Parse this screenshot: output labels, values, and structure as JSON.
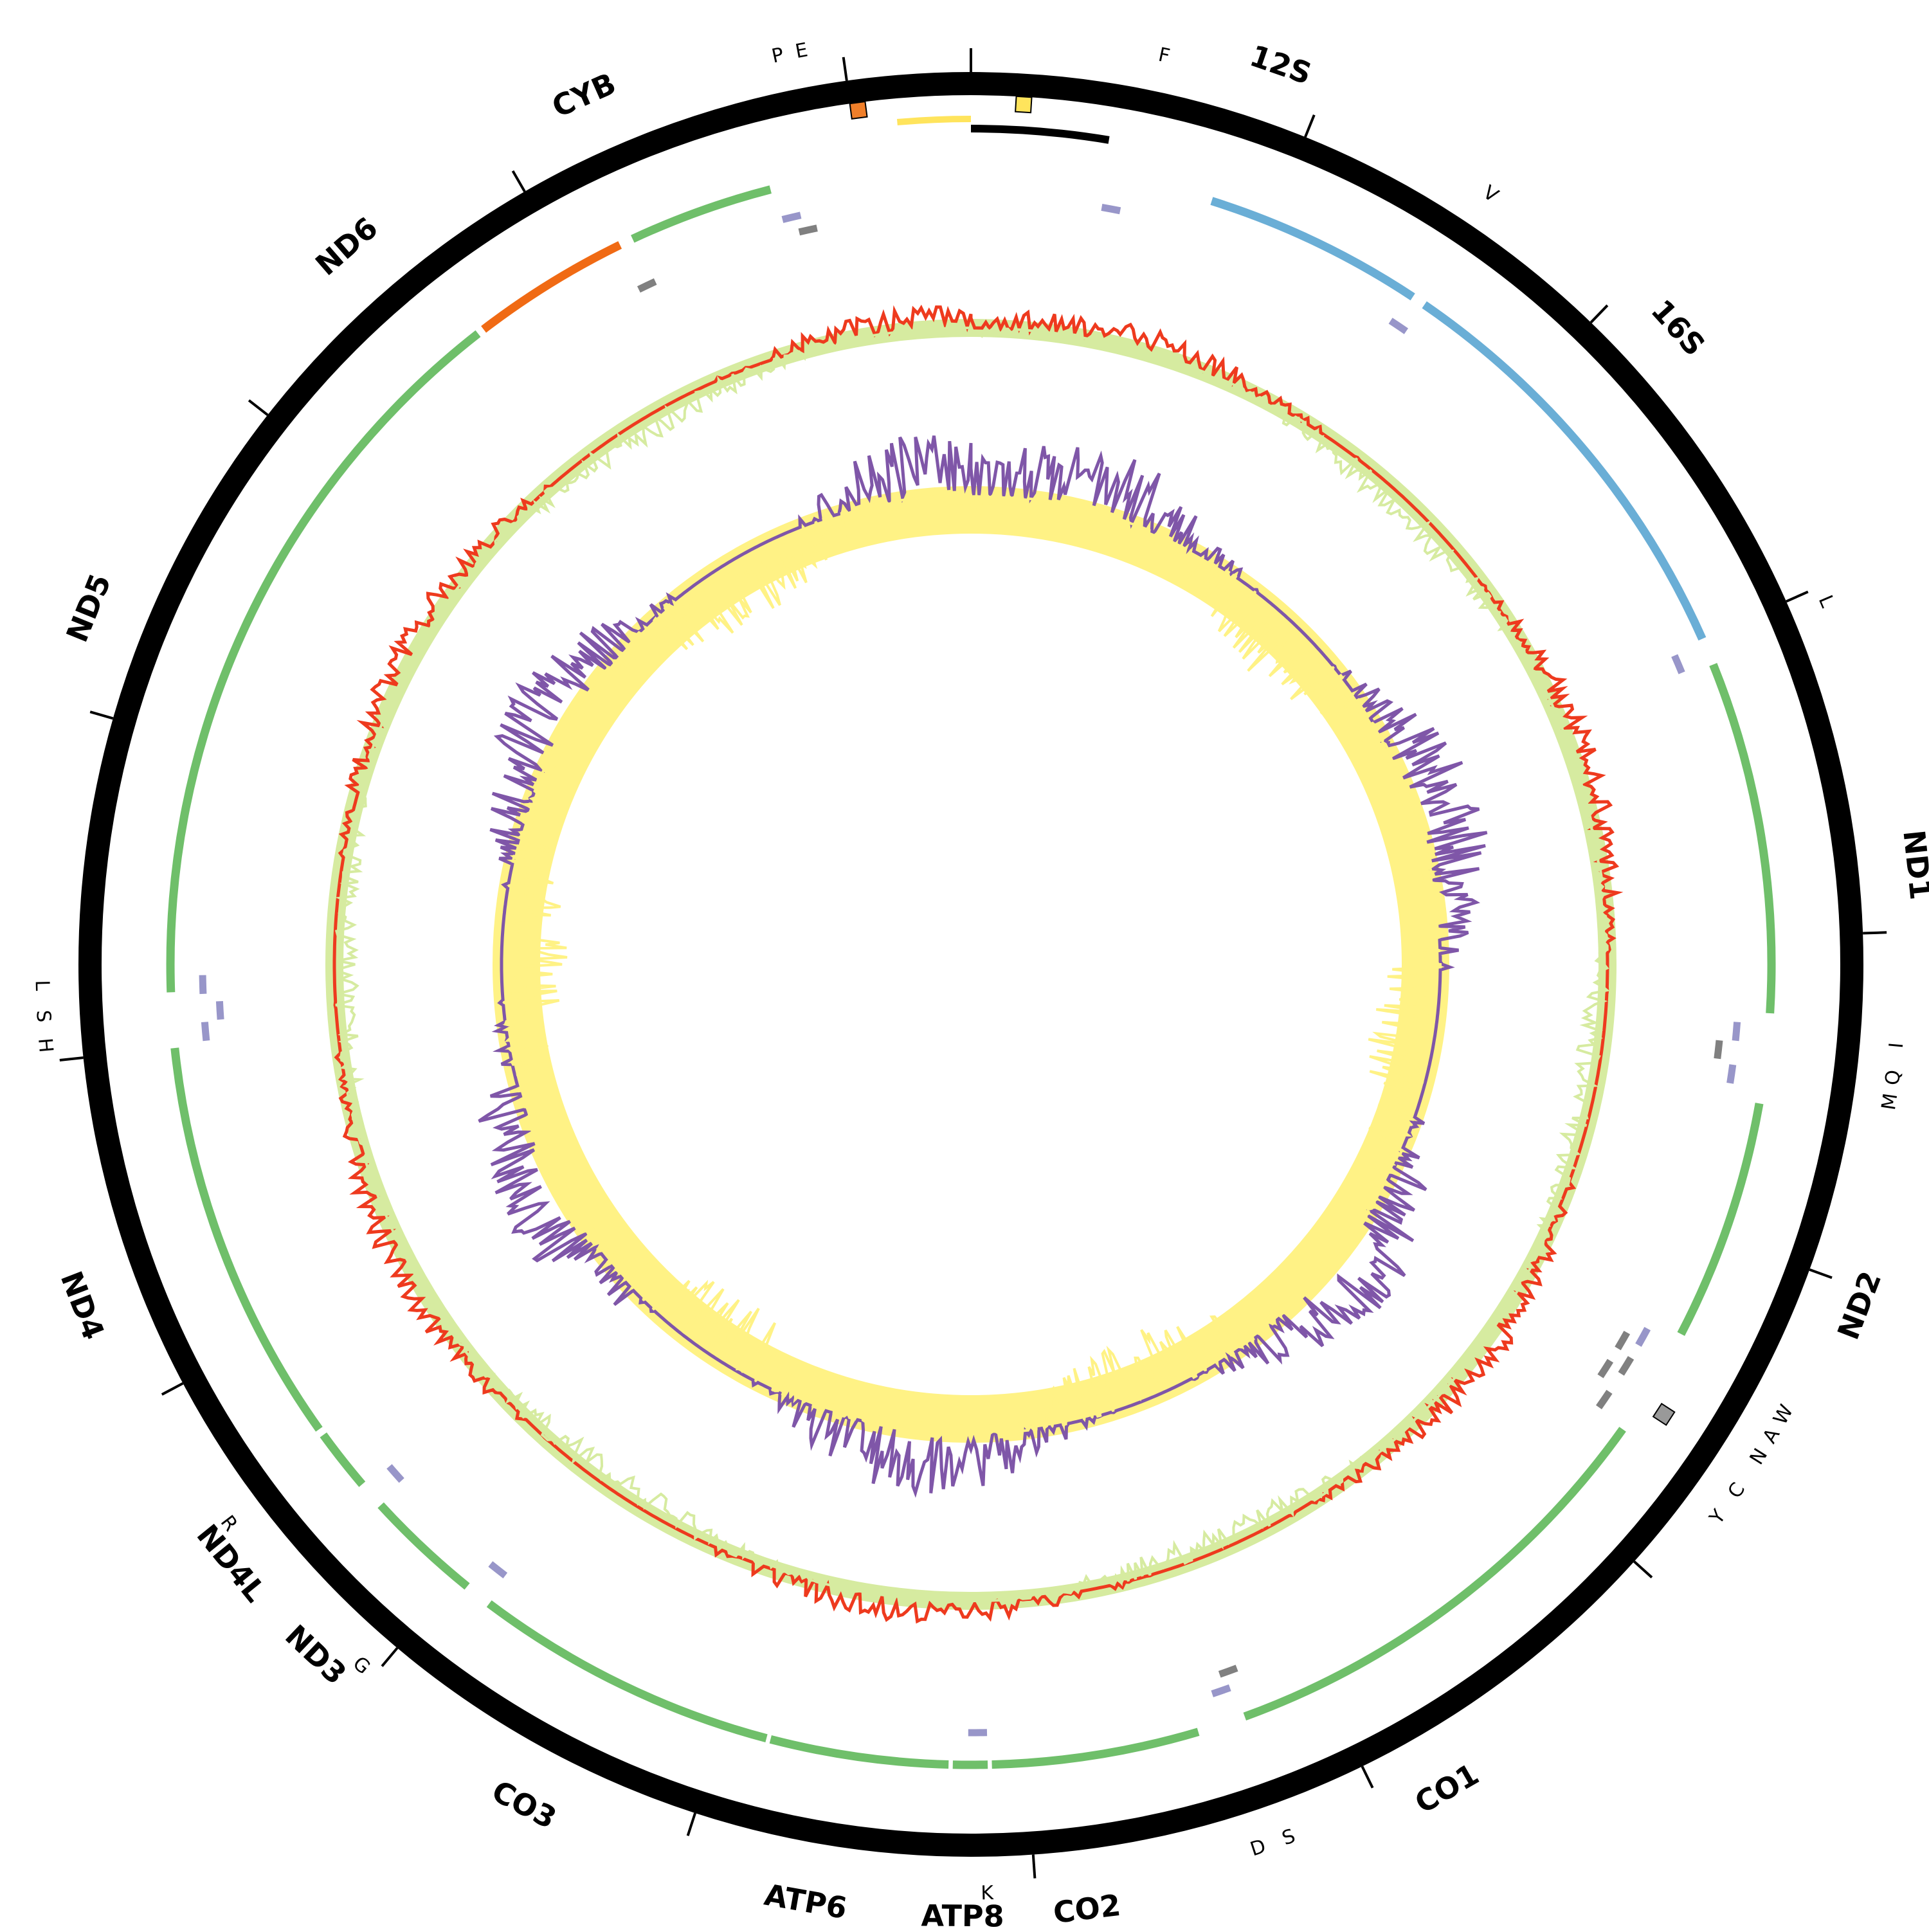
{
  "genome": {
    "gene_labels": [
      {
        "id": "12S",
        "text": "12S",
        "angle": 19
      },
      {
        "id": "16S",
        "text": "16S",
        "angle": 48
      },
      {
        "id": "ND1",
        "text": "ND1",
        "angle": 84
      },
      {
        "id": "ND2",
        "text": "ND2",
        "angle": 111
      },
      {
        "id": "CO1",
        "text": "CO1",
        "angle": 150
      },
      {
        "id": "CO2",
        "text": "CO2",
        "angle": 173
      },
      {
        "id": "ATP8",
        "text": "ATP8",
        "angle": 180.5
      },
      {
        "id": "ATP6",
        "text": "ATP6",
        "angle": 190
      },
      {
        "id": "CO3",
        "text": "CO3",
        "angle": 208
      },
      {
        "id": "ND3",
        "text": "ND3",
        "angle": 223.5
      },
      {
        "id": "ND4L",
        "text": "ND4L",
        "angle": 231
      },
      {
        "id": "ND4",
        "text": "ND4",
        "angle": 249
      },
      {
        "id": "ND5",
        "text": "ND5",
        "angle": 292
      },
      {
        "id": "ND6",
        "text": "ND6",
        "angle": 319
      },
      {
        "id": "CYB",
        "text": "CYB",
        "angle": 336
      }
    ],
    "trna_labels": [
      {
        "text": "F",
        "angle": 12
      },
      {
        "text": "V",
        "angle": 34
      },
      {
        "text": "L",
        "angle": 67
      },
      {
        "text": "I",
        "angle": 95
      },
      {
        "text": "Q",
        "angle": 97
      },
      {
        "text": "M",
        "angle": 98.5
      },
      {
        "text": "W",
        "angle": 119
      },
      {
        "text": "A",
        "angle": 120.5
      },
      {
        "text": "N",
        "angle": 122
      },
      {
        "text": "C",
        "angle": 124.5
      },
      {
        "text": "Y",
        "angle": 126.5
      },
      {
        "text": "S",
        "angle": 160
      },
      {
        "text": "D",
        "angle": 162
      },
      {
        "text": "K",
        "angle": 179
      },
      {
        "text": "G",
        "angle": 221
      },
      {
        "text": "R",
        "angle": 233
      },
      {
        "text": "H",
        "angle": 265
      },
      {
        "text": "S",
        "angle": 266.8
      },
      {
        "text": "L",
        "angle": 268.7
      },
      {
        "text": "P",
        "angle": 348
      },
      {
        "text": "E",
        "angle": 349.5
      }
    ],
    "tick_angles": [
      0,
      22,
      44,
      66,
      88,
      110,
      132,
      154,
      176,
      198,
      220,
      242,
      264,
      286,
      308,
      330,
      352
    ],
    "colors": {
      "outer_ring": "#000000",
      "protein_gene": "#6fbf6a",
      "rrna_gene": "#6aaed6",
      "nd6_gene": "#f06a14",
      "trna": "#9896c9",
      "trna_minus": "#808080",
      "control_region": "#ffe45c",
      "ohr": "#000000",
      "gc_skew_pos": "#ee3a1e",
      "gc_skew_neg": "#d6eba0",
      "gc_pos": "#7f56a8",
      "gc_neg": "#fff285",
      "marker_orange": "#f07f2a",
      "marker_yellow": "#ffe45c",
      "marker_grey": "#999999"
    }
  }
}
